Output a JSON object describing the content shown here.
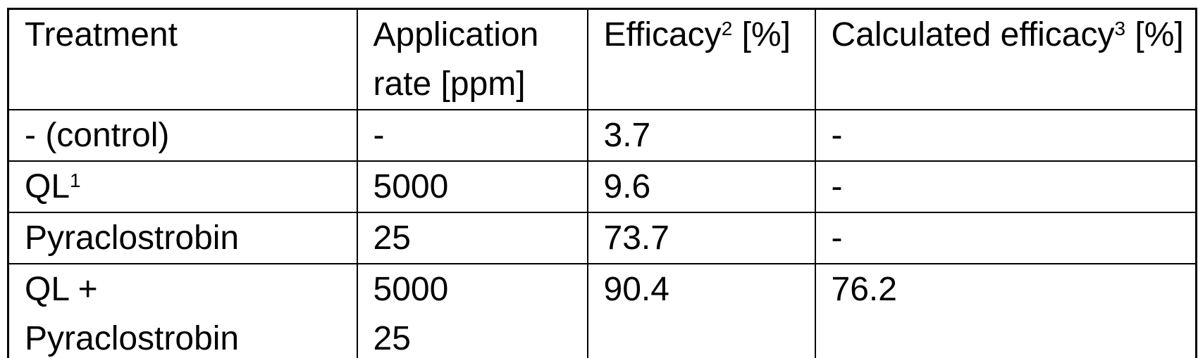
{
  "page": {
    "background_color": "#ffffff",
    "text_color": "#000000",
    "border_color": "#000000"
  },
  "table": {
    "header": {
      "treatment": {
        "label": "Treatment"
      },
      "application_rate": {
        "line1": "Application",
        "line2": "rate [ppm]"
      },
      "efficacy": {
        "base": "Efficacy",
        "sup": "2",
        "unit": " [%]"
      },
      "calculated_efficacy": {
        "base": "Calculated efficacy",
        "sup": "3",
        "unit": " [%]"
      }
    },
    "rows": [
      {
        "treatment": {
          "base": "- (control)",
          "sup": "",
          "line2": ""
        },
        "rate_lines": [
          "-",
          ""
        ],
        "efficacy": "3.7",
        "calculated_efficacy": "-"
      },
      {
        "treatment": {
          "base": "QL",
          "sup": "1",
          "line2": ""
        },
        "rate_lines": [
          "5000",
          ""
        ],
        "efficacy": "9.6",
        "calculated_efficacy": "-"
      },
      {
        "treatment": {
          "base": "Pyraclostrobin",
          "sup": "",
          "line2": ""
        },
        "rate_lines": [
          "25",
          ""
        ],
        "efficacy": "73.7",
        "calculated_efficacy": "-"
      },
      {
        "treatment": {
          "base": "QL +",
          "sup": "",
          "line2": "Pyraclostrobin"
        },
        "rate_lines": [
          "5000",
          "25"
        ],
        "efficacy": "90.4",
        "calculated_efficacy": "76.2"
      }
    ]
  }
}
